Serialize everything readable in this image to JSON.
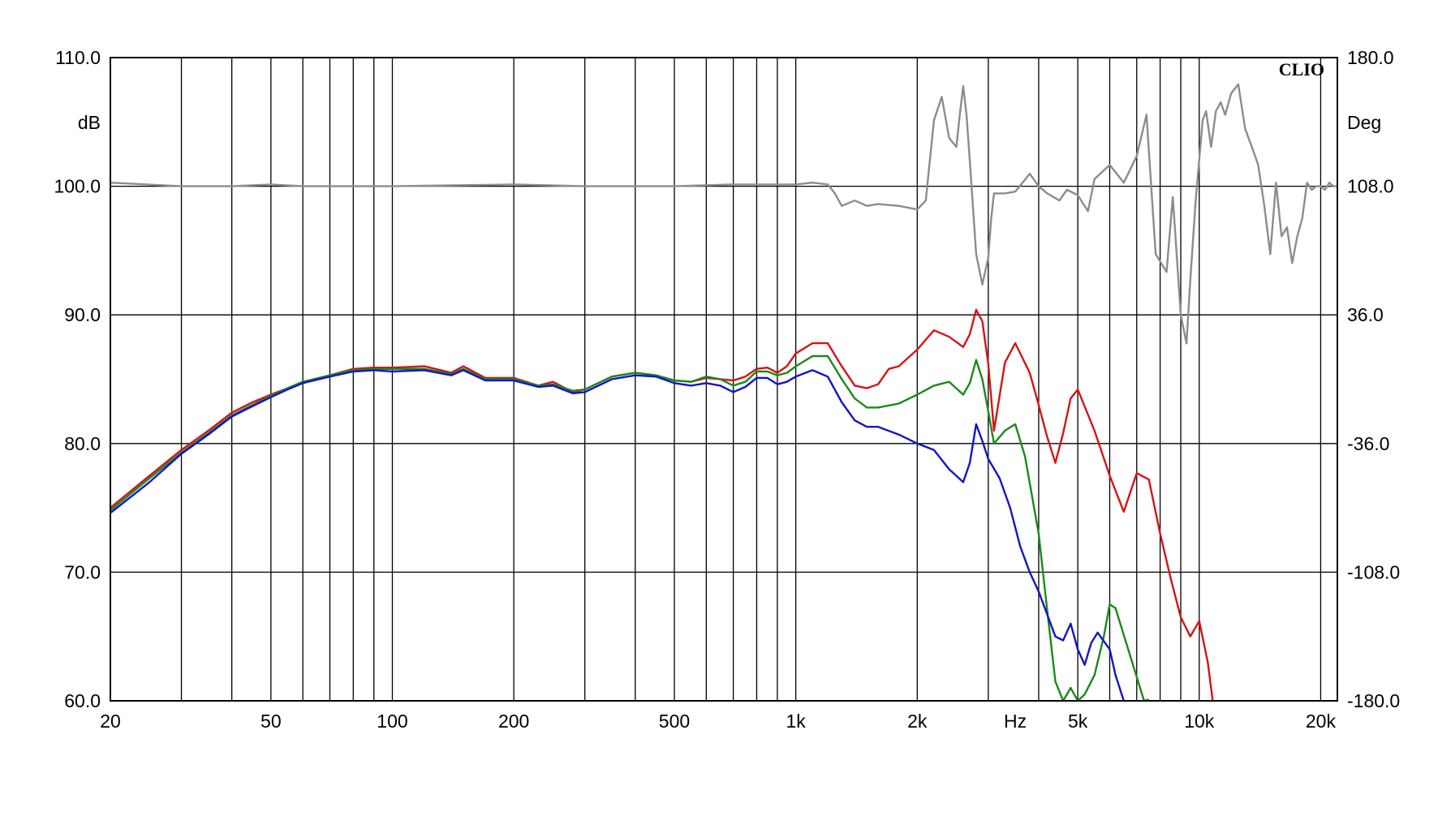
{
  "chart_data": {
    "type": "line",
    "x_scale": "log",
    "xlim": [
      20,
      22000
    ],
    "ylim_left": [
      60,
      110
    ],
    "ylim_right": [
      -180,
      180
    ],
    "grid": true,
    "brand": "CLIO",
    "left_unit": "dB",
    "right_unit": "Deg",
    "x_unit": "Hz",
    "x_ticks": [
      {
        "value": 20,
        "label": "20"
      },
      {
        "value": 50,
        "label": "50"
      },
      {
        "value": 100,
        "label": "100"
      },
      {
        "value": 200,
        "label": "200"
      },
      {
        "value": 500,
        "label": "500"
      },
      {
        "value": 1000,
        "label": "1k"
      },
      {
        "value": 2000,
        "label": "2k"
      },
      {
        "value": 5000,
        "label": "5k"
      },
      {
        "value": 10000,
        "label": "10k"
      },
      {
        "value": 20000,
        "label": "20k"
      }
    ],
    "y_ticks_left": [
      "110.0",
      "100.0",
      "90.0",
      "80.0",
      "70.0",
      "60.0"
    ],
    "y_ticks_left_values": [
      110,
      100,
      90,
      80,
      70,
      60
    ],
    "y_ticks_right": [
      "180.0",
      "108.0",
      "36.0",
      "-36.0",
      "-108.0",
      "-180.0"
    ],
    "y_ticks_right_values": [
      180,
      108,
      36,
      -36,
      -108,
      -180
    ],
    "grid_x": [
      20,
      30,
      40,
      50,
      60,
      70,
      80,
      90,
      100,
      200,
      300,
      400,
      500,
      600,
      700,
      800,
      900,
      1000,
      2000,
      3000,
      4000,
      5000,
      6000,
      7000,
      8000,
      9000,
      10000,
      20000
    ],
    "series": [
      {
        "color": "#d51414",
        "axis": "left",
        "x": [
          20,
          25,
          30,
          35,
          40,
          45,
          50,
          55,
          60,
          70,
          80,
          90,
          100,
          120,
          140,
          150,
          170,
          200,
          230,
          250,
          280,
          300,
          350,
          400,
          450,
          500,
          550,
          600,
          650,
          700,
          750,
          800,
          850,
          900,
          950,
          1000,
          1100,
          1200,
          1300,
          1400,
          1500,
          1600,
          1700,
          1800,
          2000,
          2200,
          2400,
          2600,
          2700,
          2800,
          2900,
          3000,
          3100,
          3300,
          3500,
          3800,
          4000,
          4200,
          4400,
          4600,
          4800,
          5000,
          5500,
          6000,
          6500,
          7000,
          7500,
          8000,
          8500,
          9000,
          9500,
          10000,
          10500,
          10800
        ],
        "y": [
          75.0,
          77.5,
          79.5,
          81.0,
          82.4,
          83.2,
          83.8,
          84.3,
          84.8,
          85.3,
          85.8,
          85.9,
          85.9,
          86.0,
          85.5,
          86.0,
          85.1,
          85.1,
          84.5,
          84.8,
          84.0,
          84.2,
          85.2,
          85.5,
          85.3,
          84.9,
          84.8,
          85.1,
          85.0,
          84.9,
          85.2,
          85.8,
          85.9,
          85.5,
          86.0,
          87.0,
          87.8,
          87.8,
          86.0,
          84.5,
          84.3,
          84.6,
          85.8,
          86.0,
          87.3,
          88.8,
          88.3,
          87.5,
          88.5,
          90.4,
          89.5,
          86.2,
          81.0,
          86.3,
          87.8,
          85.5,
          83.0,
          80.5,
          78.5,
          80.8,
          83.5,
          84.2,
          81.0,
          77.5,
          74.7,
          77.7,
          77.2,
          73.0,
          69.5,
          66.5,
          65.0,
          66.2,
          63.0,
          60.0
        ]
      },
      {
        "color": "#1a8a1a",
        "axis": "left",
        "x": [
          20,
          25,
          30,
          35,
          40,
          45,
          50,
          55,
          60,
          70,
          80,
          90,
          100,
          120,
          140,
          150,
          170,
          200,
          230,
          250,
          280,
          300,
          350,
          400,
          450,
          500,
          550,
          600,
          650,
          700,
          750,
          800,
          850,
          900,
          950,
          1000,
          1100,
          1200,
          1300,
          1400,
          1500,
          1600,
          1800,
          2000,
          2200,
          2400,
          2600,
          2700,
          2800,
          2900,
          3000,
          3100,
          3300,
          3500,
          3700,
          4000,
          4200,
          4400,
          4600,
          4800,
          5000,
          5200,
          5500,
          5800,
          6000,
          6200,
          7300,
          7500
        ],
        "y": [
          74.8,
          77.3,
          79.3,
          80.8,
          82.2,
          83.0,
          83.7,
          84.3,
          84.8,
          85.3,
          85.7,
          85.8,
          85.8,
          85.8,
          85.4,
          85.8,
          85.0,
          85.0,
          84.5,
          84.6,
          84.1,
          84.2,
          85.2,
          85.5,
          85.3,
          84.9,
          84.8,
          85.2,
          85.0,
          84.5,
          84.8,
          85.6,
          85.6,
          85.3,
          85.5,
          86.0,
          86.8,
          86.8,
          85.0,
          83.5,
          82.8,
          82.8,
          83.1,
          83.8,
          84.5,
          84.8,
          83.8,
          84.7,
          86.5,
          85.0,
          82.5,
          80.0,
          81.0,
          81.5,
          79.0,
          73.0,
          67.0,
          61.5,
          60.0,
          61.0,
          60.0,
          60.5,
          62.0,
          65.0,
          67.5,
          67.2,
          60.0,
          60.1
        ]
      },
      {
        "color": "#1414c8",
        "axis": "left",
        "x": [
          20,
          25,
          30,
          35,
          40,
          45,
          50,
          55,
          60,
          70,
          80,
          90,
          100,
          120,
          140,
          150,
          170,
          200,
          230,
          250,
          280,
          300,
          350,
          400,
          450,
          500,
          550,
          600,
          650,
          700,
          750,
          800,
          850,
          900,
          950,
          1000,
          1100,
          1200,
          1300,
          1400,
          1500,
          1600,
          1800,
          2000,
          2200,
          2400,
          2600,
          2700,
          2800,
          2900,
          3000,
          3200,
          3400,
          3600,
          3800,
          4000,
          4200,
          4400,
          4600,
          4800,
          5000,
          5200,
          5400,
          5600,
          6000,
          6200,
          6500
        ],
        "y": [
          74.6,
          77.0,
          79.2,
          80.7,
          82.1,
          82.9,
          83.6,
          84.2,
          84.7,
          85.2,
          85.6,
          85.7,
          85.6,
          85.7,
          85.3,
          85.7,
          84.9,
          84.9,
          84.4,
          84.5,
          83.9,
          84.0,
          85.0,
          85.3,
          85.2,
          84.7,
          84.5,
          84.7,
          84.5,
          84.0,
          84.4,
          85.1,
          85.1,
          84.6,
          84.8,
          85.2,
          85.7,
          85.2,
          83.2,
          81.8,
          81.3,
          81.3,
          80.7,
          80.0,
          79.5,
          78.0,
          77.0,
          78.5,
          81.5,
          80.2,
          78.8,
          77.3,
          75.0,
          72.0,
          70.0,
          68.5,
          66.7,
          65.0,
          64.7,
          66.0,
          64.0,
          62.8,
          64.5,
          65.3,
          64.0,
          62.0,
          60.0
        ]
      },
      {
        "color": "#8c8c8c",
        "axis": "right",
        "x": [
          20,
          30,
          40,
          50,
          60,
          70,
          100,
          200,
          300,
          500,
          700,
          1000,
          1100,
          1200,
          1250,
          1300,
          1400,
          1500,
          1600,
          1800,
          2000,
          2100,
          2200,
          2300,
          2400,
          2500,
          2550,
          2600,
          2650,
          2700,
          2800,
          2900,
          3000,
          3050,
          3100,
          3200,
          3300,
          3500,
          3800,
          4000,
          4200,
          4500,
          4700,
          5000,
          5300,
          5500,
          6000,
          6500,
          7000,
          7400,
          7800,
          8300,
          8600,
          9000,
          9300,
          9500,
          9800,
          10200,
          10400,
          10700,
          11000,
          11300,
          11600,
          12000,
          12500,
          13000,
          13500,
          14000,
          14500,
          15000,
          15500,
          16000,
          16500,
          17000,
          17500,
          18000,
          18500,
          19000,
          19500,
          20000,
          20500,
          21000,
          21500,
          22000
        ],
        "y": [
          110,
          108,
          108,
          109,
          108,
          108,
          108,
          109,
          108,
          108,
          109,
          109,
          110,
          109,
          104,
          97,
          100,
          97,
          98,
          97,
          95,
          100,
          145,
          158,
          135,
          130,
          148,
          164,
          148,
          122,
          70,
          53,
          68,
          90,
          104,
          104,
          104,
          105,
          115,
          108,
          104,
          100,
          106,
          103,
          94,
          112,
          120,
          110,
          125,
          148,
          70,
          60,
          102,
          36,
          20,
          55,
          100,
          145,
          150,
          130,
          150,
          155,
          148,
          160,
          165,
          140,
          130,
          120,
          97,
          70,
          110,
          80,
          85,
          65,
          80,
          90,
          110,
          106,
          108,
          108,
          106,
          110,
          108,
          108
        ]
      }
    ]
  }
}
